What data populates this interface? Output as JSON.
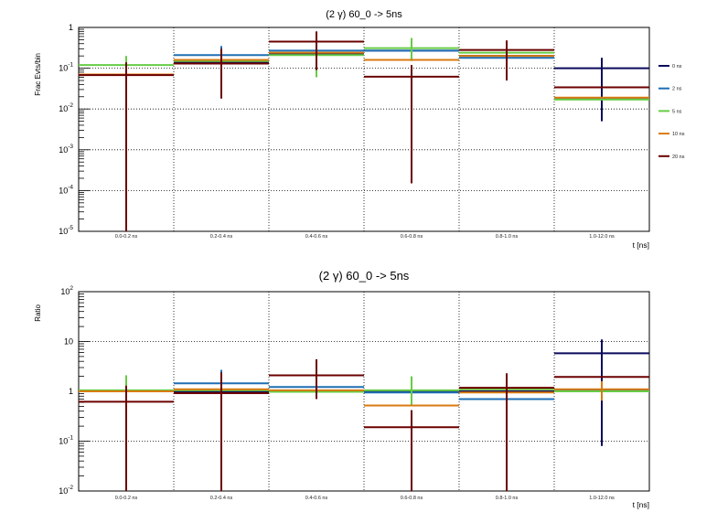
{
  "chart_data": [
    {
      "type": "line",
      "title": "(2 γ) 60_0 -> 5ns",
      "xlabel": "t [ns]",
      "ylabel": "Frac Evts/bin",
      "yscale": "log",
      "ylim_exp": [
        -5,
        0
      ],
      "y_tick_labels": [
        {
          "base": "10",
          "exp": "-5"
        },
        {
          "base": "10",
          "exp": "-4"
        },
        {
          "base": "10",
          "exp": "-3"
        },
        {
          "base": "10",
          "exp": "-2"
        },
        {
          "base": "10",
          "exp": "-1"
        },
        {
          "base": "1",
          "exp": ""
        }
      ],
      "categories": [
        "0.0-0.2 ns",
        "0.2-0.4 ns",
        "0.4-0.6 ns",
        "0.6-0.8 ns",
        "0.8-1.0 ns",
        "1.0-12.0 ns"
      ],
      "legend": "right",
      "series": [
        {
          "name": "0 ns",
          "color": "#0a0a5c",
          "values": [
            0.07,
            0.14,
            0.22,
            0.27,
            0.2,
            0.1
          ],
          "err_lo": [
            1e-05,
            0.14,
            0.22,
            0.27,
            0.2,
            0.005
          ],
          "err_hi": [
            0.07,
            0.14,
            0.22,
            0.27,
            0.2,
            0.18
          ]
        },
        {
          "name": "2 ns",
          "color": "#1f6fb4",
          "values": [
            0.07,
            0.21,
            0.27,
            0.27,
            0.18,
            0.018
          ],
          "err_lo": [
            0.07,
            0.05,
            0.27,
            0.27,
            0.18,
            0.018
          ],
          "err_hi": [
            0.07,
            0.35,
            0.27,
            0.27,
            0.18,
            0.018
          ]
        },
        {
          "name": "5 ns",
          "color": "#66cc44",
          "values": [
            0.12,
            0.15,
            0.21,
            0.31,
            0.24,
            0.017
          ],
          "err_lo": [
            0.05,
            0.15,
            0.06,
            0.15,
            0.24,
            0.017
          ],
          "err_hi": [
            0.2,
            0.15,
            0.35,
            0.55,
            0.24,
            0.017
          ]
        },
        {
          "name": "10 ns",
          "color": "#d97a10",
          "values": [
            0.07,
            0.16,
            0.24,
            0.16,
            0.2,
            0.019
          ],
          "err_lo": [
            0.07,
            0.16,
            0.24,
            0.16,
            0.06,
            0.019
          ],
          "err_hi": [
            0.07,
            0.16,
            0.24,
            0.16,
            0.2,
            0.019
          ]
        },
        {
          "name": "20 ns",
          "color": "#6b0000",
          "values": [
            0.068,
            0.13,
            0.45,
            0.062,
            0.28,
            0.034
          ],
          "err_lo": [
            1e-05,
            0.018,
            0.09,
            0.00015,
            0.05,
            0.034
          ],
          "err_hi": [
            0.14,
            0.3,
            0.8,
            0.12,
            0.48,
            0.034
          ]
        }
      ]
    },
    {
      "type": "line",
      "title": "(2 γ) 60_0 -> 5ns",
      "xlabel": "t [ns]",
      "ylabel": "Ratio",
      "yscale": "log",
      "ylim_exp": [
        -2,
        2
      ],
      "y_tick_labels": [
        {
          "base": "10",
          "exp": "-2"
        },
        {
          "base": "10",
          "exp": "-1"
        },
        {
          "base": "1",
          "exp": ""
        },
        {
          "base": "10",
          "exp": ""
        },
        {
          "base": "10",
          "exp": "2"
        }
      ],
      "categories": [
        "0.0-0.2 ns",
        "0.2-0.4 ns",
        "0.4-0.6 ns",
        "0.6-0.8 ns",
        "0.8-1.0 ns",
        "1.0-12.0 ns"
      ],
      "series": [
        {
          "name": "0 ns",
          "color": "#0a0a5c",
          "values": [
            1,
            1,
            1,
            1,
            1,
            5.8
          ],
          "err_lo": [
            1,
            1,
            1,
            1,
            1,
            0.08
          ],
          "err_hi": [
            1,
            1,
            1,
            1,
            1,
            11
          ]
        },
        {
          "name": "2 ns",
          "color": "#1f6fb4",
          "values": [
            1,
            1.45,
            1.22,
            0.95,
            0.7,
            1.05
          ],
          "err_lo": [
            1,
            1.45,
            1.22,
            0.95,
            0.7,
            1.05
          ],
          "err_hi": [
            1,
            2.7,
            1.22,
            0.95,
            0.7,
            1.05
          ]
        },
        {
          "name": "5 ns",
          "color": "#66cc44",
          "values": [
            1.05,
            1.05,
            0.98,
            1.05,
            1.1,
            1.0
          ],
          "err_lo": [
            0.5,
            1.05,
            0.98,
            0.5,
            1.1,
            1.0
          ],
          "err_hi": [
            2.1,
            1.05,
            0.98,
            2.0,
            1.1,
            1.0
          ]
        },
        {
          "name": "10 ns",
          "color": "#d97a10",
          "values": [
            1.0,
            1.1,
            1.05,
            0.52,
            0.95,
            1.1
          ],
          "err_lo": [
            1.0,
            1.1,
            1.05,
            0.52,
            0.95,
            0.65
          ],
          "err_hi": [
            1.0,
            1.1,
            1.05,
            0.52,
            0.95,
            1.6
          ]
        },
        {
          "name": "20 ns",
          "color": "#6b0000",
          "values": [
            0.62,
            0.92,
            2.1,
            0.19,
            1.18,
            1.95
          ],
          "err_lo": [
            0.01,
            0.01,
            0.7,
            0.01,
            0.01,
            1.95
          ],
          "err_hi": [
            1.3,
            2.4,
            4.4,
            0.42,
            2.3,
            1.95
          ]
        }
      ]
    }
  ]
}
